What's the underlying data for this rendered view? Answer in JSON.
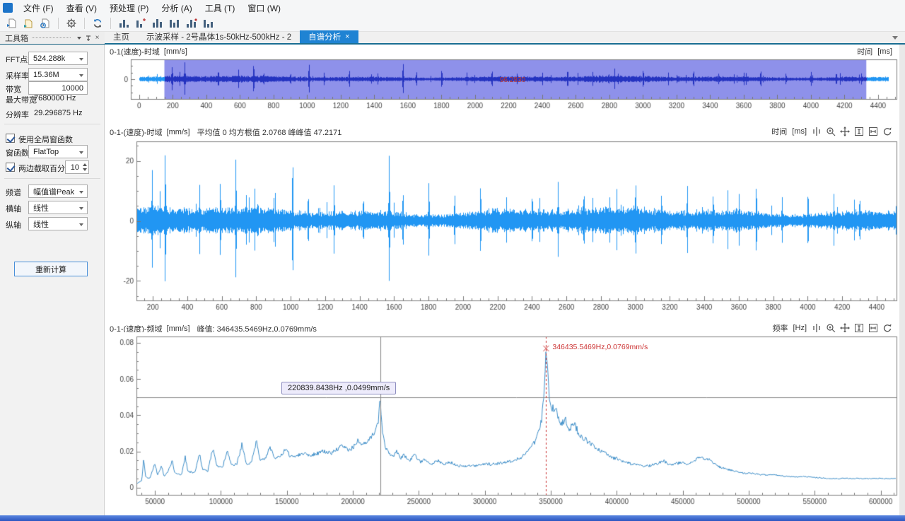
{
  "menu": {
    "items": [
      {
        "label": "文件 (F)"
      },
      {
        "label": "查看 (V)"
      },
      {
        "label": "预处理 (P)"
      },
      {
        "label": "分析 (A)"
      },
      {
        "label": "工具 (T)"
      },
      {
        "label": "窗口 (W)"
      }
    ]
  },
  "toolbar": {
    "icons": [
      "new-icon",
      "open-icon",
      "import-icon",
      "settings-gear-icon",
      "refresh-icon",
      "chart-tool-1-icon",
      "chart-tool-2-icon",
      "chart-tool-3-icon",
      "chart-tool-4-icon",
      "chart-tool-5-icon",
      "chart-tool-6-icon"
    ]
  },
  "tabs": {
    "items": [
      {
        "label": "主页",
        "active": false
      },
      {
        "label": "示波采样 - 2号晶体1s-50kHz-500kHz - 2",
        "active": false
      },
      {
        "label": "自谱分析",
        "active": true,
        "closable": true
      }
    ],
    "close_glyph": "×"
  },
  "toolbox": {
    "title": "工具箱",
    "fft_points": {
      "label": "FFT点数",
      "value": "524.288k"
    },
    "sample_rate": {
      "label": "采样率",
      "value": "15.36M"
    },
    "bandwidth": {
      "label": "带宽",
      "value": "10000"
    },
    "max_bandwidth": {
      "label": "最大带宽",
      "value": "7680000 Hz"
    },
    "resolution": {
      "label": "分辨率",
      "value": "29.296875 Hz"
    },
    "use_global_window": {
      "label": "使用全局窗函数",
      "checked": true
    },
    "window_fn": {
      "label": "窗函数",
      "value": "FlatTop"
    },
    "trim_percent": {
      "label": "两边截取百分比",
      "checked": true,
      "value": "10"
    },
    "spectrum_type": {
      "label": "频谱",
      "value": "幅值谱Peak"
    },
    "x_axis": {
      "label": "横轴",
      "value": "线性"
    },
    "y_axis": {
      "label": "纵轴",
      "value": "线性"
    },
    "recalc_label": "重新计算"
  },
  "headers": {
    "chart1": {
      "title": "0-1(速度)-时域",
      "unit": "[mm/s]",
      "axis": "时间",
      "axis_unit": "[ms]"
    },
    "chart2": {
      "title": "0-1-(速度)-时域",
      "unit": "[mm/s]",
      "stats": "平均值 0 均方根值 2.0768 峰峰值 47.2171",
      "axis": "时间",
      "axis_unit": "[ms]"
    },
    "chart3": {
      "title": "0-1-(速度)-频域",
      "unit": "[mm/s]",
      "stats": "峰值:  346435.5469Hz,0.0769mm/s",
      "axis": "频率",
      "axis_unit": "[Hz]"
    }
  },
  "colors": {
    "wave_blue": "#2196f3",
    "wave_dark": "#2433c0",
    "selection_bg": "#8e91ea",
    "spectrum_line": "#3d8ec9",
    "annotation_red": "#cc3333",
    "crosshair_gray": "#888888",
    "active_tab": "#1f83d3",
    "doc_border_teal": "#1a6e93",
    "axis_text": "#444444"
  },
  "chart_data": [
    {
      "id": "overview",
      "type": "waveform-overview",
      "title": "0-1(速度)-时域 [mm/s]",
      "xlabel": "时间 [ms]",
      "ylabel": "mm/s",
      "xlim": [
        -50,
        4510
      ],
      "ylim": [
        -27,
        27
      ],
      "xticks": [
        0,
        200,
        400,
        600,
        800,
        1000,
        1200,
        1400,
        1600,
        1800,
        2000,
        2200,
        2400,
        2600,
        2800,
        3000,
        3200,
        3400,
        3600,
        3800,
        4000,
        4200,
        4400
      ],
      "yticks": [
        0
      ],
      "y_minor_step": 9,
      "x_minor_step": 50,
      "selection": {
        "from": 150,
        "to": 4330,
        "label": "96.2830"
      },
      "signal": {
        "noise_rms": 2.0768,
        "seed": 7,
        "spikes": [
          [
            195,
            17
          ],
          [
            240,
            10
          ],
          [
            270,
            23
          ],
          [
            470,
            12
          ],
          [
            590,
            13
          ],
          [
            680,
            21
          ],
          [
            740,
            9
          ],
          [
            900,
            8
          ],
          [
            1010,
            21
          ],
          [
            1100,
            9
          ],
          [
            1250,
            12
          ],
          [
            1420,
            8
          ],
          [
            1570,
            22
          ],
          [
            1650,
            10
          ],
          [
            1800,
            13
          ],
          [
            1950,
            9
          ],
          [
            2100,
            12
          ],
          [
            2250,
            8
          ],
          [
            2400,
            9
          ],
          [
            2550,
            13
          ],
          [
            2700,
            10
          ],
          [
            2850,
            8
          ],
          [
            3000,
            13
          ],
          [
            3150,
            9
          ],
          [
            3300,
            12
          ],
          [
            3450,
            8
          ],
          [
            3600,
            9
          ],
          [
            3700,
            12
          ],
          [
            3850,
            8
          ],
          [
            4000,
            10
          ],
          [
            4150,
            9
          ],
          [
            4300,
            8
          ]
        ],
        "draw_from": 0,
        "draw_to": 4460,
        "quiet_before": 150
      }
    },
    {
      "id": "time",
      "type": "waveform",
      "title": "0-1-(速度)-时域 [mm/s]",
      "xlabel": "时间 [ms]",
      "ylabel": "mm/s",
      "xlim": [
        105,
        4515
      ],
      "ylim": [
        -26.5,
        26.5
      ],
      "xticks": [
        200,
        400,
        600,
        800,
        1000,
        1200,
        1400,
        1600,
        1800,
        2000,
        2200,
        2400,
        2600,
        2800,
        3000,
        3200,
        3400,
        3600,
        3800,
        4000,
        4200,
        4400
      ],
      "yticks": [
        -20,
        0,
        20
      ],
      "y_minor_step": 5,
      "x_minor_step": 50,
      "stats": {
        "mean": 0,
        "rms": 2.0768,
        "peak_to_peak": 47.2171
      },
      "signal": {
        "noise_rms": 2.0768,
        "seed": 42,
        "spikes": [
          [
            195,
            17
          ],
          [
            240,
            10
          ],
          [
            270,
            23
          ],
          [
            470,
            12
          ],
          [
            590,
            13
          ],
          [
            680,
            21
          ],
          [
            740,
            9
          ],
          [
            900,
            8
          ],
          [
            1010,
            21
          ],
          [
            1100,
            9
          ],
          [
            1250,
            12
          ],
          [
            1420,
            8
          ],
          [
            1570,
            22
          ],
          [
            1650,
            10
          ],
          [
            1800,
            13
          ],
          [
            1950,
            9
          ],
          [
            2100,
            12
          ],
          [
            2250,
            8
          ],
          [
            2400,
            9
          ],
          [
            2550,
            13
          ],
          [
            2700,
            10
          ],
          [
            2850,
            8
          ],
          [
            3000,
            13
          ],
          [
            3150,
            9
          ],
          [
            3300,
            12
          ],
          [
            3450,
            8
          ],
          [
            3600,
            9
          ],
          [
            3700,
            12
          ],
          [
            3850,
            8
          ],
          [
            4000,
            10
          ],
          [
            4150,
            9
          ],
          [
            4300,
            8
          ]
        ],
        "draw_from": 105,
        "draw_to": 4515,
        "quiet_before": 0
      }
    },
    {
      "id": "spectrum",
      "type": "line",
      "title": "0-1-(速度)-频域 [mm/s]",
      "xlabel": "频率 [Hz]",
      "ylabel": "mm/s",
      "xlim": [
        36000,
        612000
      ],
      "ylim": [
        -0.004,
        0.0835
      ],
      "xticks": [
        50000,
        100000,
        150000,
        200000,
        250000,
        300000,
        350000,
        400000,
        450000,
        500000,
        550000,
        600000
      ],
      "yticks": [
        0,
        0.02,
        0.04,
        0.06,
        0.08
      ],
      "ytick_labels": [
        "0",
        "0.02",
        "0.04",
        "0.06",
        "0.08"
      ],
      "y_minor_step": 0.005,
      "x_minor_step": 10000,
      "jitter_seed": 99,
      "points": [
        [
          36000,
          0.002
        ],
        [
          40000,
          0.004
        ],
        [
          41500,
          0.016
        ],
        [
          43000,
          0.006
        ],
        [
          46000,
          0.005
        ],
        [
          50000,
          0.013
        ],
        [
          52000,
          0.007
        ],
        [
          55000,
          0.012
        ],
        [
          57000,
          0.006
        ],
        [
          60000,
          0.009
        ],
        [
          63000,
          0.015
        ],
        [
          65000,
          0.008
        ],
        [
          70000,
          0.007
        ],
        [
          73000,
          0.017
        ],
        [
          75000,
          0.009
        ],
        [
          80000,
          0.008
        ],
        [
          84000,
          0.019
        ],
        [
          86000,
          0.01
        ],
        [
          90000,
          0.009
        ],
        [
          94000,
          0.022
        ],
        [
          97000,
          0.012
        ],
        [
          101000,
          0.011
        ],
        [
          105000,
          0.02
        ],
        [
          108000,
          0.012
        ],
        [
          112000,
          0.013
        ],
        [
          116000,
          0.024
        ],
        [
          119000,
          0.013
        ],
        [
          123000,
          0.014
        ],
        [
          127000,
          0.026
        ],
        [
          130000,
          0.015
        ],
        [
          134000,
          0.016
        ],
        [
          137000,
          0.023
        ],
        [
          141000,
          0.016
        ],
        [
          145000,
          0.017
        ],
        [
          149000,
          0.021
        ],
        [
          153000,
          0.017
        ],
        [
          158000,
          0.018
        ],
        [
          163000,
          0.019
        ],
        [
          168000,
          0.018
        ],
        [
          173000,
          0.019
        ],
        [
          178000,
          0.02
        ],
        [
          183000,
          0.019
        ],
        [
          188000,
          0.021
        ],
        [
          192000,
          0.023
        ],
        [
          196000,
          0.021
        ],
        [
          200000,
          0.022
        ],
        [
          204000,
          0.026
        ],
        [
          207000,
          0.023
        ],
        [
          211000,
          0.025
        ],
        [
          214000,
          0.028
        ],
        [
          217000,
          0.032
        ],
        [
          219500,
          0.038
        ],
        [
          220840,
          0.0499
        ],
        [
          222000,
          0.034
        ],
        [
          224000,
          0.024
        ],
        [
          227000,
          0.019
        ],
        [
          230000,
          0.017
        ],
        [
          233000,
          0.02
        ],
        [
          236000,
          0.016
        ],
        [
          239000,
          0.018
        ],
        [
          243000,
          0.015
        ],
        [
          247000,
          0.018
        ],
        [
          251000,
          0.014
        ],
        [
          255000,
          0.016
        ],
        [
          259000,
          0.013
        ],
        [
          264000,
          0.015
        ],
        [
          269000,
          0.013
        ],
        [
          274000,
          0.014
        ],
        [
          280000,
          0.012
        ],
        [
          287000,
          0.012
        ],
        [
          294000,
          0.012
        ],
        [
          301000,
          0.013
        ],
        [
          308000,
          0.013
        ],
        [
          315000,
          0.014
        ],
        [
          322000,
          0.015
        ],
        [
          328000,
          0.017
        ],
        [
          334000,
          0.021
        ],
        [
          339000,
          0.027
        ],
        [
          343000,
          0.038
        ],
        [
          345300,
          0.055
        ],
        [
          346435,
          0.0769
        ],
        [
          347500,
          0.063
        ],
        [
          349000,
          0.05
        ],
        [
          351000,
          0.043
        ],
        [
          353000,
          0.045
        ],
        [
          355000,
          0.04
        ],
        [
          358000,
          0.036
        ],
        [
          361000,
          0.038
        ],
        [
          364000,
          0.033
        ],
        [
          368000,
          0.035
        ],
        [
          371000,
          0.03
        ],
        [
          375000,
          0.027
        ],
        [
          379000,
          0.025
        ],
        [
          383000,
          0.022
        ],
        [
          387000,
          0.021
        ],
        [
          391000,
          0.019
        ],
        [
          395000,
          0.017
        ],
        [
          400000,
          0.016
        ],
        [
          406000,
          0.014
        ],
        [
          412000,
          0.013
        ],
        [
          418000,
          0.012
        ],
        [
          424000,
          0.012
        ],
        [
          430000,
          0.013
        ],
        [
          435000,
          0.015
        ],
        [
          439000,
          0.013
        ],
        [
          444000,
          0.013
        ],
        [
          449000,
          0.014
        ],
        [
          454000,
          0.013
        ],
        [
          459000,
          0.015
        ],
        [
          463000,
          0.017
        ],
        [
          467000,
          0.016
        ],
        [
          471000,
          0.015
        ],
        [
          475000,
          0.013
        ],
        [
          479000,
          0.011
        ],
        [
          484000,
          0.01
        ],
        [
          490000,
          0.009
        ],
        [
          496000,
          0.008
        ],
        [
          503000,
          0.008
        ],
        [
          510000,
          0.007
        ],
        [
          520000,
          0.007
        ],
        [
          530000,
          0.006
        ],
        [
          545000,
          0.006
        ],
        [
          560000,
          0.005
        ],
        [
          580000,
          0.005
        ],
        [
          600000,
          0.005
        ]
      ],
      "cursors": {
        "gray_vline_x": 220839.8438,
        "gray_hline_y": 0.0499,
        "red_dashed_vline_x": 346435.5469
      },
      "peaks": [
        {
          "x": 220839.8438,
          "y": 0.0499,
          "label": "220839.8438Hz ,0.0499mm/s",
          "style": "tooltip"
        },
        {
          "x": 346435.5469,
          "y": 0.0769,
          "label": "346435.5469Hz,0.0769mm/s",
          "style": "red-cursor"
        }
      ]
    }
  ]
}
